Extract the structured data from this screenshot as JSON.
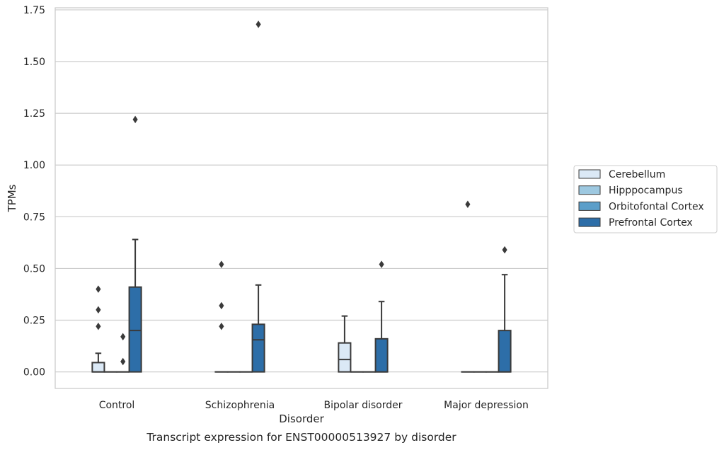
{
  "chart_data": {
    "type": "box",
    "xlabel": "Disorder",
    "ylabel": "TPMs",
    "caption": "Transcript expression for ENST00000513927 by disorder",
    "ylim": [
      -0.08,
      1.76
    ],
    "yticks": [
      {
        "value": 0.0,
        "label": "0.00"
      },
      {
        "value": 0.25,
        "label": "0.25"
      },
      {
        "value": 0.5,
        "label": "0.50"
      },
      {
        "value": 0.75,
        "label": "0.75"
      },
      {
        "value": 1.0,
        "label": "1.00"
      },
      {
        "value": 1.25,
        "label": "1.25"
      },
      {
        "value": 1.5,
        "label": "1.50"
      },
      {
        "value": 1.75,
        "label": "1.75"
      }
    ],
    "grid": "horizontal",
    "legend_position": "right",
    "categories": [
      "Control",
      "Schizophrenia",
      "Bipolar disorder",
      "Major depression"
    ],
    "series": [
      {
        "name": "Cerebellum",
        "color": "#dbe9f6",
        "boxes": [
          {
            "min": 0.0,
            "q1": 0.0,
            "median": 0.0,
            "q3": 0.045,
            "max": 0.09,
            "outliers": [
              0.22,
              0.3,
              0.4
            ]
          },
          {
            "min": 0.0,
            "q1": 0.0,
            "median": 0.0,
            "q3": 0.0,
            "max": 0.0,
            "outliers": [
              0.22,
              0.32,
              0.52
            ]
          },
          {
            "min": 0.0,
            "q1": 0.0,
            "median": 0.06,
            "q3": 0.14,
            "max": 0.27,
            "outliers": []
          },
          {
            "min": 0.0,
            "q1": 0.0,
            "median": 0.0,
            "q3": 0.0,
            "max": 0.0,
            "outliers": [
              0.81
            ]
          }
        ]
      },
      {
        "name": "Hipppocampus",
        "color": "#9dc8e0",
        "boxes": [
          {
            "min": 0.0,
            "q1": 0.0,
            "median": 0.0,
            "q3": 0.0,
            "max": 0.0,
            "outliers": []
          },
          {
            "min": 0.0,
            "q1": 0.0,
            "median": 0.0,
            "q3": 0.0,
            "max": 0.0,
            "outliers": []
          },
          {
            "min": 0.0,
            "q1": 0.0,
            "median": 0.0,
            "q3": 0.0,
            "max": 0.0,
            "outliers": []
          },
          {
            "min": 0.0,
            "q1": 0.0,
            "median": 0.0,
            "q3": 0.0,
            "max": 0.0,
            "outliers": []
          }
        ]
      },
      {
        "name": "Orbitofontal Cortex",
        "color": "#5b9ec9",
        "boxes": [
          {
            "min": 0.0,
            "q1": 0.0,
            "median": 0.0,
            "q3": 0.0,
            "max": 0.0,
            "outliers": [
              0.05,
              0.17
            ]
          },
          {
            "min": 0.0,
            "q1": 0.0,
            "median": 0.0,
            "q3": 0.0,
            "max": 0.0,
            "outliers": []
          },
          {
            "min": 0.0,
            "q1": 0.0,
            "median": 0.0,
            "q3": 0.0,
            "max": 0.0,
            "outliers": []
          },
          {
            "min": 0.0,
            "q1": 0.0,
            "median": 0.0,
            "q3": 0.0,
            "max": 0.0,
            "outliers": []
          }
        ]
      },
      {
        "name": "Prefrontal Cortex",
        "color": "#2d6ea8",
        "boxes": [
          {
            "min": 0.0,
            "q1": 0.0,
            "median": 0.2,
            "q3": 0.41,
            "max": 0.64,
            "outliers": [
              1.22
            ]
          },
          {
            "min": 0.0,
            "q1": 0.0,
            "median": 0.155,
            "q3": 0.23,
            "max": 0.42,
            "outliers": [
              1.68
            ]
          },
          {
            "min": 0.0,
            "q1": 0.0,
            "median": 0.0,
            "q3": 0.16,
            "max": 0.34,
            "outliers": [
              0.52
            ]
          },
          {
            "min": 0.0,
            "q1": 0.0,
            "median": 0.0,
            "q3": 0.2,
            "max": 0.47,
            "outliers": [
              0.59
            ]
          }
        ]
      }
    ]
  }
}
